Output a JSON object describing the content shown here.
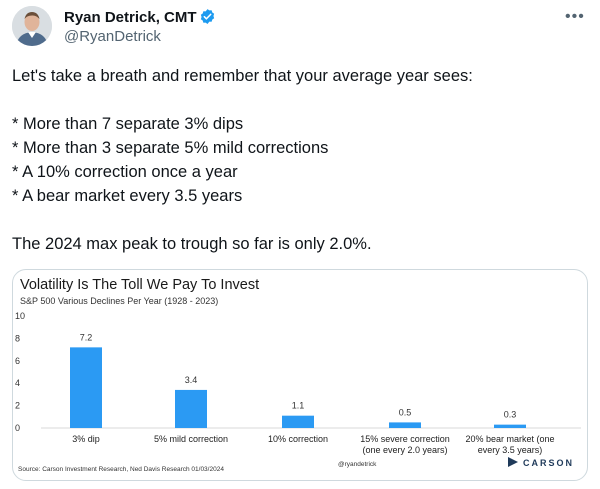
{
  "author": {
    "name": "Ryan Detrick, CMT",
    "handle": "@RyanDetrick"
  },
  "tweet": {
    "lines": [
      "Let's take a breath and remember that your average year sees:",
      "* More than 7 separate 3% dips",
      "* More than 3 separate 5% mild corrections",
      "* A 10% correction once a year",
      "* A bear market every 3.5 years",
      "The 2024 max peak to trough so far is only 2.0%."
    ]
  },
  "more_icon": "more-dots-icon",
  "verified_icon": "verified-badge-icon",
  "colors": {
    "bar": "#2b9af3",
    "verified": "#1d9bf0",
    "text": "#0f1419",
    "muted": "#536471",
    "carson": "#1f3a5a"
  },
  "chart_data": {
    "type": "bar",
    "title": "Volatility Is The Toll We Pay To Invest",
    "subtitle": "S&P 500 Various Declines Per Year (1928 - 2023)",
    "categories": [
      [
        "3% dip"
      ],
      [
        "5% mild correction"
      ],
      [
        "10% correction"
      ],
      [
        "15% severe correction",
        "(one every 2.0 years)"
      ],
      [
        "20% bear market (one",
        "every 3.5  years)"
      ]
    ],
    "values": [
      7.2,
      3.4,
      1.1,
      0.5,
      0.3
    ],
    "value_labels": [
      "7.2",
      "3.4",
      "1.1",
      "0.5",
      "0.3"
    ],
    "ylim": [
      0,
      10
    ],
    "yticks": [
      "0",
      "2",
      "4",
      "6",
      "8",
      "10"
    ],
    "grid": false,
    "source": "Source: Carson Investment Research, Ned Davis Research 01/03/2024",
    "watermark": "@ryandetrick",
    "logo": "CARSON"
  }
}
